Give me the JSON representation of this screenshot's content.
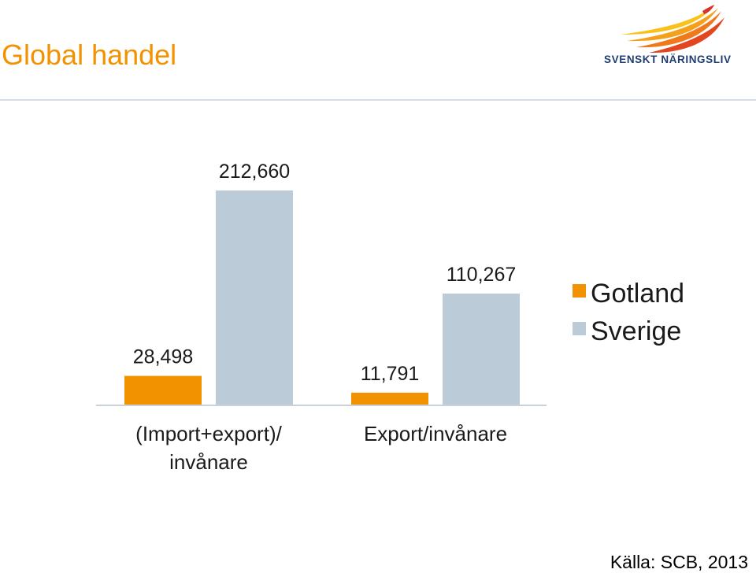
{
  "header": {
    "title": "Global handel",
    "logo_text": "SVENSKT NÄRINGSLIV",
    "title_color": "#f39200"
  },
  "chart_data": {
    "type": "bar",
    "categories": [
      "(Import+export)/ invånare",
      "Export/invånare"
    ],
    "series": [
      {
        "name": "Gotland",
        "values": [
          28498,
          11791
        ],
        "color": "#f39200",
        "labels": [
          "28,498",
          "11,791"
        ]
      },
      {
        "name": "Sverige",
        "values": [
          212660,
          110267
        ],
        "color": "#bccbd8",
        "labels": [
          "212,660",
          "110,267"
        ]
      }
    ],
    "ylim": [
      0,
      230000
    ],
    "grid": false,
    "legend_position": "right"
  },
  "legend": {
    "items": [
      "Gotland",
      "Sverige"
    ]
  },
  "footer": {
    "source": "Källa: SCB, 2013"
  }
}
